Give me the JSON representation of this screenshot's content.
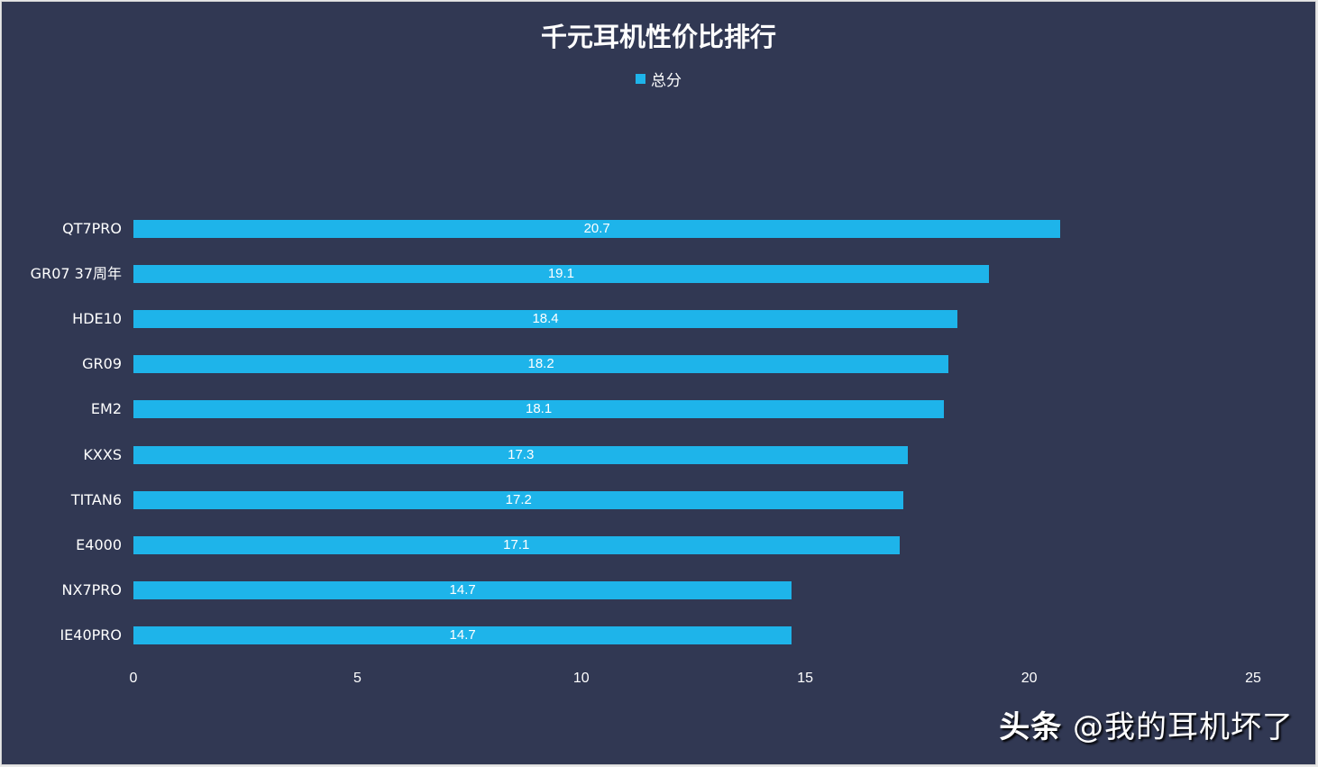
{
  "chart_data": {
    "type": "bar",
    "orientation": "horizontal",
    "title": "千元耳机性价比排行",
    "legend": [
      "总分"
    ],
    "legend_position": "top",
    "categories": [
      "QT7PRO",
      "GR07 37周年",
      "HDE10",
      "GR09",
      "EM2",
      "KXXS",
      "TITAN6",
      "E4000",
      "NX7PRO",
      "IE40PRO"
    ],
    "series": [
      {
        "name": "总分",
        "values": [
          20.7,
          19.1,
          18.4,
          18.2,
          18.1,
          17.3,
          17.2,
          17.1,
          14.7,
          14.7
        ],
        "color": "#1eb4ea"
      }
    ],
    "xlabel": "",
    "ylabel": "",
    "xlim": [
      0,
      25
    ],
    "xticks": [
      "0",
      "5",
      "10",
      "15",
      "20",
      "25"
    ],
    "grid": false
  },
  "colors": {
    "background": "#313853",
    "bar": "#1eb4ea",
    "text": "#ffffff"
  },
  "rows": [
    {
      "label": "QT7PRO",
      "value": "20.7"
    },
    {
      "label": "GR07 37周年",
      "value": "19.1"
    },
    {
      "label": "HDE10",
      "value": "18.4"
    },
    {
      "label": "GR09",
      "value": "18.2"
    },
    {
      "label": "EM2",
      "value": "18.1"
    },
    {
      "label": "KXXS",
      "value": "17.3"
    },
    {
      "label": "TITAN6",
      "value": "17.2"
    },
    {
      "label": "E4000",
      "value": "17.1"
    },
    {
      "label": "NX7PRO",
      "value": "14.7"
    },
    {
      "label": "IE40PRO",
      "value": "14.7"
    }
  ],
  "watermark": {
    "brand": "头条",
    "handle": "@我的耳机坏了"
  }
}
